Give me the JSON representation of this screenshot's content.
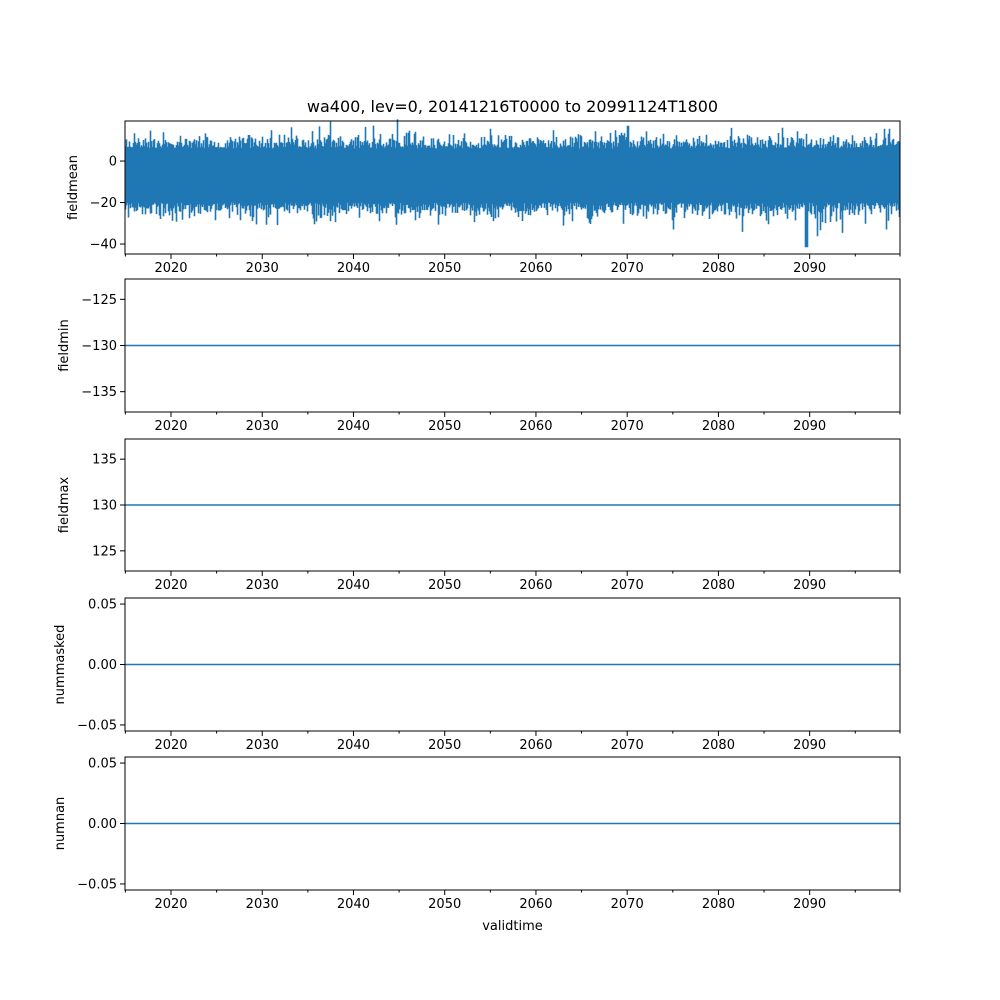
{
  "chart_data": [
    {
      "type": "line",
      "title": "wa400, lev=0, 20141216T0000 to 20991124T1800",
      "ylabel": "fieldmean",
      "xlabel": "",
      "xlim": [
        2014.96,
        2099.9
      ],
      "ylim": [
        -44.8,
        19.3
      ],
      "yticks": [
        0,
        -20,
        -40
      ],
      "ytick_labels": [
        "0",
        "−20",
        "−40"
      ],
      "series_summary": {
        "mean": -7,
        "typical_upper": 8,
        "typical_lower": -22,
        "max": 17,
        "max_at": 2070.0,
        "min": -41.5,
        "min_at": 2089.6
      },
      "color": "#1f77b4"
    },
    {
      "type": "line",
      "ylabel": "fieldmin",
      "xlim": [
        2014.96,
        2099.9
      ],
      "ylim": [
        -137.2,
        -122.8
      ],
      "yticks": [
        -125,
        -130,
        -135
      ],
      "ytick_labels": [
        "−125",
        "−130",
        "−135"
      ],
      "constant_value": -130,
      "color": "#1f77b4"
    },
    {
      "type": "line",
      "ylabel": "fieldmax",
      "xlim": [
        2014.96,
        2099.9
      ],
      "ylim": [
        122.8,
        137.2
      ],
      "yticks": [
        135,
        130,
        125
      ],
      "ytick_labels": [
        "135",
        "130",
        "125"
      ],
      "constant_value": 130,
      "color": "#1f77b4"
    },
    {
      "type": "line",
      "ylabel": "nummasked",
      "xlim": [
        2014.96,
        2099.9
      ],
      "ylim": [
        -0.055,
        0.055
      ],
      "yticks": [
        0.05,
        0,
        -0.05
      ],
      "ytick_labels": [
        "0.05",
        "0.00",
        "−0.05"
      ],
      "constant_value": 0,
      "color": "#1f77b4"
    },
    {
      "type": "line",
      "ylabel": "numnan",
      "xlabel": "validtime",
      "xlim": [
        2014.96,
        2099.9
      ],
      "ylim": [
        -0.055,
        0.055
      ],
      "yticks": [
        0.05,
        0,
        -0.05
      ],
      "ytick_labels": [
        "0.05",
        "0.00",
        "−0.05"
      ],
      "constant_value": 0,
      "color": "#1f77b4"
    }
  ],
  "xticks": [
    2020,
    2030,
    2040,
    2050,
    2060,
    2070,
    2080,
    2090
  ],
  "xtick_labels": [
    "2020",
    "2030",
    "2040",
    "2050",
    "2060",
    "2070",
    "2080",
    "2090"
  ],
  "xminor_ticks": [
    2015,
    2025,
    2035,
    2045,
    2055,
    2065,
    2075,
    2085,
    2095,
    2100
  ]
}
